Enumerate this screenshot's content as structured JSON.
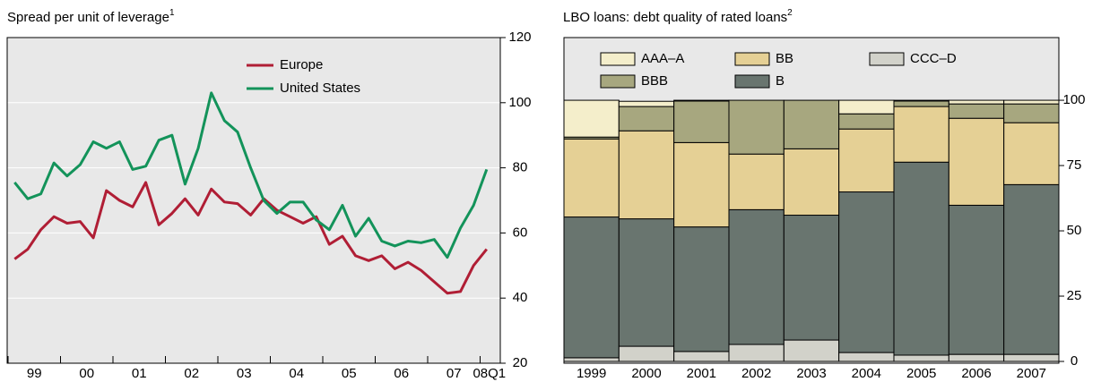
{
  "chart_data": [
    {
      "type": "line",
      "title": "Spread per unit of leverage",
      "title_superscript": "1",
      "categories": [
        "99",
        null,
        null,
        null,
        "00",
        null,
        null,
        null,
        "01",
        null,
        null,
        null,
        "02",
        null,
        null,
        null,
        "03",
        null,
        null,
        null,
        "04",
        null,
        null,
        null,
        "05",
        null,
        null,
        null,
        "06",
        null,
        null,
        null,
        "07",
        null,
        null,
        null,
        "08Q1"
      ],
      "series": [
        {
          "name": "Europe",
          "color": "#b01e35",
          "values": [
            52,
            55,
            61,
            65,
            63,
            63.5,
            58.5,
            73,
            70,
            68,
            75.5,
            62.5,
            66,
            70.5,
            65.5,
            73.5,
            69.5,
            69,
            65.5,
            70.5,
            67,
            65,
            63,
            65,
            56.5,
            59,
            53,
            51.5,
            53,
            49,
            51,
            48.5,
            45,
            41.5,
            42,
            50,
            55
          ]
        },
        {
          "name": "United States",
          "color": "#13935a",
          "values": [
            75.5,
            70.5,
            72,
            81.5,
            77.5,
            81,
            88,
            86,
            88,
            79.5,
            80.5,
            88.5,
            90,
            75,
            86,
            103,
            94.5,
            91,
            80,
            70,
            66,
            69.5,
            69.5,
            64,
            61,
            68.5,
            59,
            64.5,
            57.5,
            56,
            57.5,
            57,
            58,
            52.5,
            61.5,
            68.5,
            79.5
          ]
        }
      ],
      "ylim": [
        20,
        120
      ],
      "yticks": [
        20,
        40,
        60,
        80,
        100,
        120
      ],
      "grid": true,
      "legend": "top"
    },
    {
      "type": "bar",
      "stacked": true,
      "title": "LBO loans: debt quality of rated loans",
      "title_superscript": "2",
      "categories": [
        "1999",
        "2000",
        "2001",
        "2002",
        "2003",
        "2004",
        "2005",
        "2006",
        "2007"
      ],
      "series": [
        {
          "name": "AAA–A",
          "color": "#f4eecb",
          "values": [
            14.1,
            2,
            0.3,
            0,
            0,
            5.2,
            0.3,
            1.4,
            1.4
          ]
        },
        {
          "name": "BBB",
          "color": "#a7a77f",
          "values": [
            0.7,
            9.3,
            15.9,
            20.6,
            18.6,
            5.8,
            2.1,
            5.5,
            7.2
          ]
        },
        {
          "name": "BB",
          "color": "#e5d095",
          "values": [
            29.9,
            33.7,
            32.3,
            21.3,
            25.4,
            24.1,
            21.3,
            33.3,
            23.7
          ]
        },
        {
          "name": "B",
          "color": "#69756f",
          "values": [
            53.9,
            48.8,
            47.7,
            51.6,
            47.8,
            61.5,
            73.9,
            57.1,
            65
          ]
        },
        {
          "name": "CCC–D",
          "color": "#d2d2ca",
          "values": [
            1.4,
            5.8,
            3.8,
            6.5,
            8.2,
            3.4,
            2.4,
            2.7,
            2.7
          ]
        }
      ],
      "ylim": [
        0,
        124
      ],
      "yticks": [
        0,
        25,
        50,
        75,
        100
      ],
      "grid": false,
      "legend": "top"
    }
  ]
}
